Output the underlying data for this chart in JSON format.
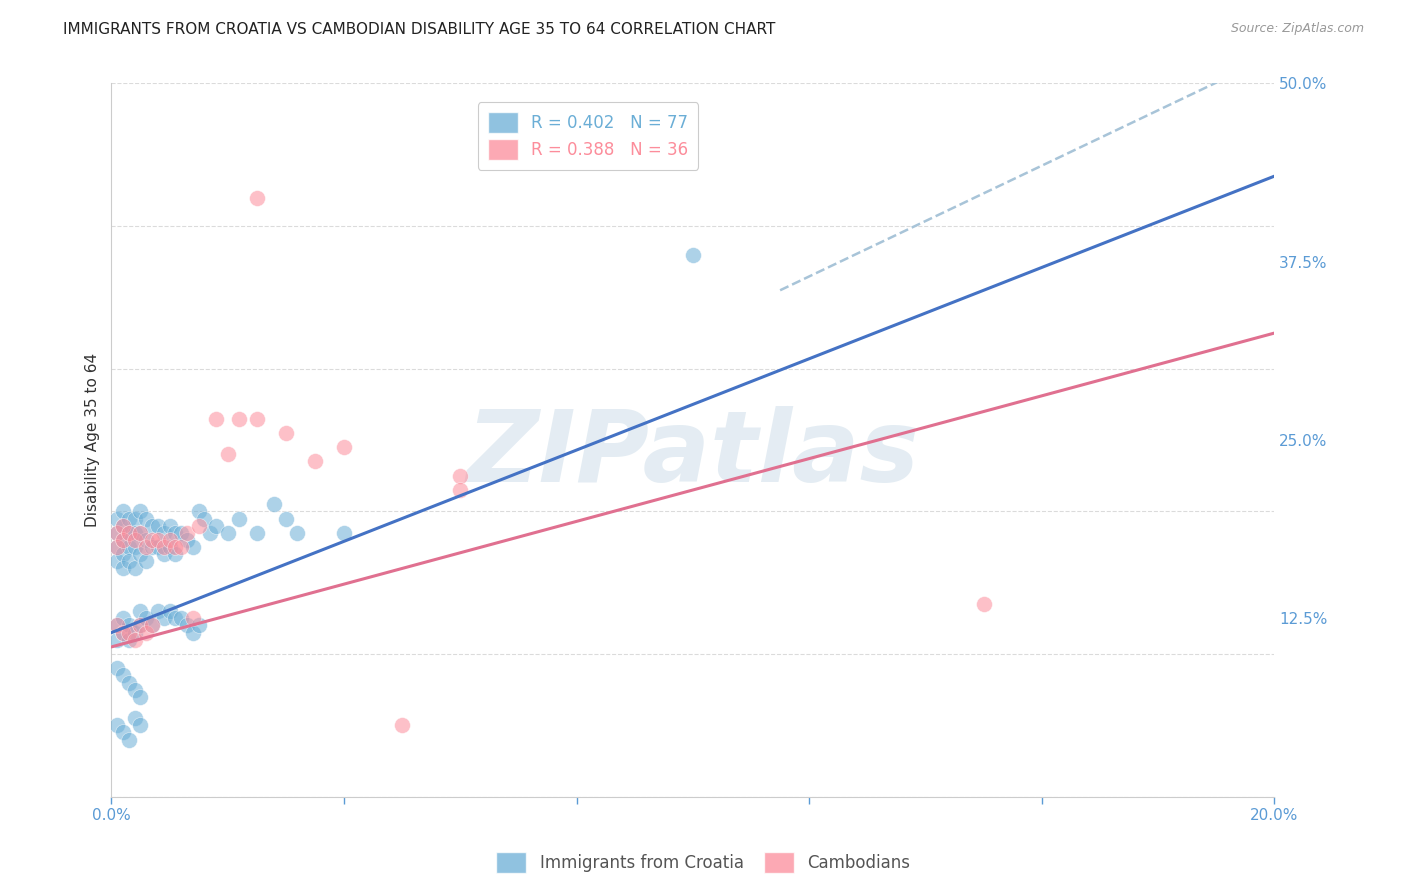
{
  "title": "IMMIGRANTS FROM CROATIA VS CAMBODIAN DISABILITY AGE 35 TO 64 CORRELATION CHART",
  "source": "Source: ZipAtlas.com",
  "ylabel": "Disability Age 35 to 64",
  "xlim": [
    0.0,
    0.2
  ],
  "ylim": [
    0.0,
    0.5
  ],
  "xtick_positions": [
    0.0,
    0.04,
    0.08,
    0.12,
    0.16,
    0.2
  ],
  "xticklabels": [
    "0.0%",
    "",
    "",
    "",
    "",
    "20.0%"
  ],
  "ytick_positions": [
    0.0,
    0.125,
    0.25,
    0.375,
    0.5
  ],
  "yticklabels": [
    "",
    "12.5%",
    "25.0%",
    "37.5%",
    "50.0%"
  ],
  "legend1_label": "R = 0.402   N = 77",
  "legend2_label": "R = 0.388   N = 36",
  "blue_color": "#6baed6",
  "pink_color": "#fc8d9b",
  "blue_line_color": "#4472c4",
  "pink_line_color": "#e07090",
  "dashed_color": "#a8c4d8",
  "watermark": "ZIPatlas",
  "blue_trend": [
    0.0,
    0.115,
    0.2,
    0.435
  ],
  "blue_dashed": [
    0.115,
    0.355,
    0.2,
    0.52
  ],
  "pink_trend": [
    0.0,
    0.105,
    0.2,
    0.325
  ],
  "background_color": "#ffffff",
  "grid_color": "#d8d8d8",
  "tick_color": "#5b9bd5",
  "title_fontsize": 11,
  "axis_label_fontsize": 11,
  "tick_fontsize": 11,
  "legend_fontsize": 12,
  "blue_scatter_x": [
    0.001,
    0.001,
    0.001,
    0.001,
    0.002,
    0.002,
    0.002,
    0.002,
    0.002,
    0.003,
    0.003,
    0.003,
    0.003,
    0.004,
    0.004,
    0.004,
    0.004,
    0.005,
    0.005,
    0.005,
    0.006,
    0.006,
    0.006,
    0.007,
    0.007,
    0.008,
    0.008,
    0.009,
    0.009,
    0.01,
    0.01,
    0.011,
    0.011,
    0.012,
    0.013,
    0.014,
    0.015,
    0.016,
    0.017,
    0.018,
    0.02,
    0.022,
    0.025,
    0.028,
    0.03,
    0.032,
    0.001,
    0.001,
    0.002,
    0.002,
    0.003,
    0.003,
    0.004,
    0.005,
    0.005,
    0.006,
    0.007,
    0.008,
    0.009,
    0.01,
    0.011,
    0.012,
    0.013,
    0.014,
    0.015,
    0.001,
    0.002,
    0.003,
    0.004,
    0.005,
    0.001,
    0.002,
    0.003,
    0.004,
    0.005,
    0.1,
    0.04
  ],
  "blue_scatter_y": [
    0.195,
    0.185,
    0.175,
    0.165,
    0.2,
    0.19,
    0.18,
    0.17,
    0.16,
    0.195,
    0.185,
    0.175,
    0.165,
    0.195,
    0.185,
    0.175,
    0.16,
    0.2,
    0.185,
    0.17,
    0.195,
    0.18,
    0.165,
    0.19,
    0.175,
    0.19,
    0.175,
    0.185,
    0.17,
    0.19,
    0.175,
    0.185,
    0.17,
    0.185,
    0.18,
    0.175,
    0.2,
    0.195,
    0.185,
    0.19,
    0.185,
    0.195,
    0.185,
    0.205,
    0.195,
    0.185,
    0.12,
    0.11,
    0.125,
    0.115,
    0.12,
    0.11,
    0.115,
    0.13,
    0.12,
    0.125,
    0.12,
    0.13,
    0.125,
    0.13,
    0.125,
    0.125,
    0.12,
    0.115,
    0.12,
    0.05,
    0.045,
    0.04,
    0.055,
    0.05,
    0.09,
    0.085,
    0.08,
    0.075,
    0.07,
    0.38,
    0.185
  ],
  "pink_scatter_x": [
    0.001,
    0.001,
    0.001,
    0.002,
    0.002,
    0.002,
    0.003,
    0.003,
    0.004,
    0.004,
    0.005,
    0.005,
    0.006,
    0.006,
    0.007,
    0.007,
    0.008,
    0.009,
    0.01,
    0.011,
    0.012,
    0.013,
    0.014,
    0.015,
    0.018,
    0.02,
    0.022,
    0.025,
    0.03,
    0.035,
    0.04,
    0.05,
    0.06,
    0.025,
    0.15,
    0.06
  ],
  "pink_scatter_y": [
    0.185,
    0.175,
    0.12,
    0.19,
    0.18,
    0.115,
    0.185,
    0.115,
    0.18,
    0.11,
    0.185,
    0.12,
    0.175,
    0.115,
    0.18,
    0.12,
    0.18,
    0.175,
    0.18,
    0.175,
    0.175,
    0.185,
    0.125,
    0.19,
    0.265,
    0.24,
    0.265,
    0.265,
    0.255,
    0.235,
    0.245,
    0.05,
    0.225,
    0.42,
    0.135,
    0.215
  ]
}
